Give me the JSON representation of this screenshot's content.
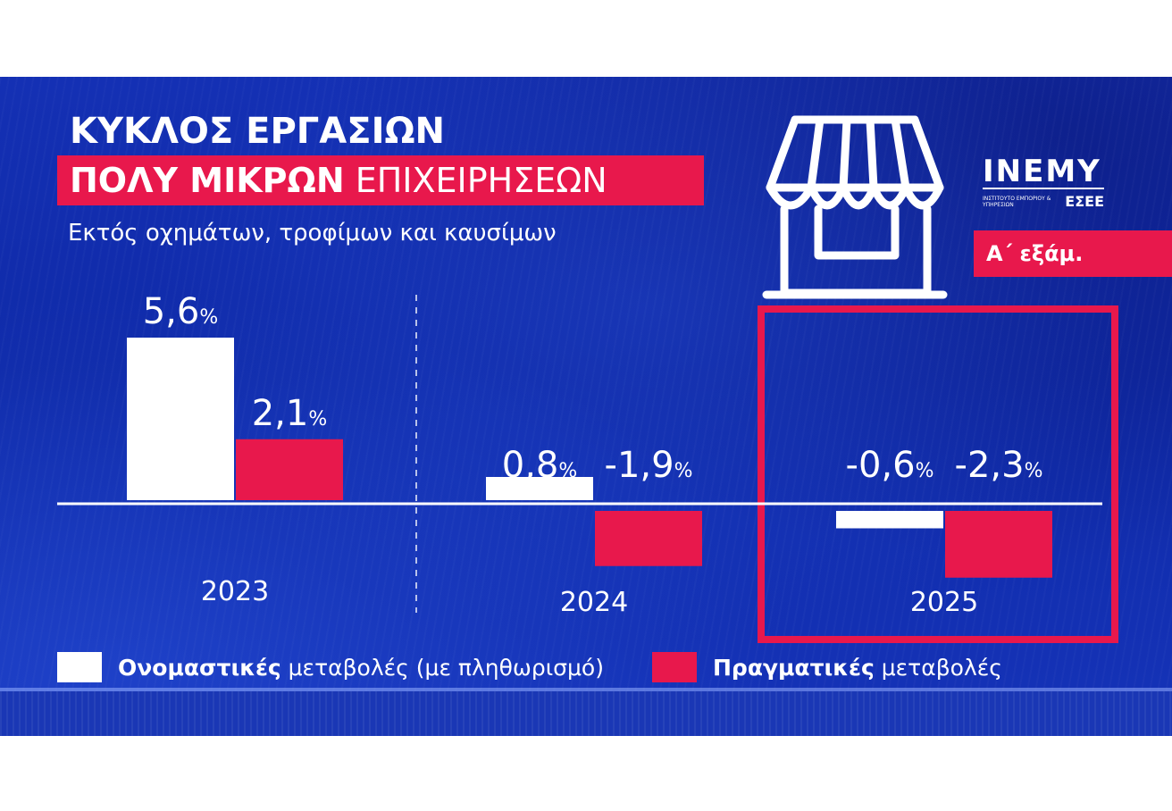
{
  "title": {
    "line1": "ΚΥΚΛΟΣ ΕΡΓΑΣΙΩΝ",
    "line2_bold": "ΠΟΛΥ ΜΙΚΡΩΝ",
    "line2_light": "ΕΠΙΧΕΙΡΗΣΕΩΝ"
  },
  "subtitle": "Εκτός οχημάτων, τροφίμων και καυσίμων",
  "logo": {
    "name": "INEMY",
    "subtitle": "ΙΝΣΤΙΤΟΥΤΟ ΕΜΠΟΡΙΟΥ & ΥΠΗΡΕΣΙΩΝ",
    "org": "ΕΣΕΕ",
    "icon": "storefront-icon"
  },
  "period_badge": "Α΄ εξάμ.",
  "colors": {
    "background": "#1430b4",
    "accent": "#e8184c",
    "nominal": "#ffffff",
    "real": "#e8184c"
  },
  "chart_data": {
    "type": "bar",
    "categories": [
      "2023",
      "2024",
      "2025"
    ],
    "series": [
      {
        "name": "Ονομαστικές μεταβολές (με πληθωρισμό)",
        "values": [
          5.6,
          0.8,
          -0.6
        ],
        "labels": [
          "5,6",
          "0,8",
          "-0,6"
        ]
      },
      {
        "name": "Πραγματικές μεταβολές",
        "values": [
          2.1,
          -1.9,
          -2.3
        ],
        "labels": [
          "2,1",
          "-1,9",
          "-2,3"
        ]
      }
    ],
    "unit": "%",
    "highlight_category": "2025",
    "legend_position": "bottom"
  },
  "legend": [
    {
      "bold": "Ονομαστικές",
      "rest": "μεταβολές (με πληθωρισμό)",
      "color": "#ffffff"
    },
    {
      "bold": "Πραγματικές",
      "rest": "μεταβολές",
      "color": "#e8184c"
    }
  ]
}
